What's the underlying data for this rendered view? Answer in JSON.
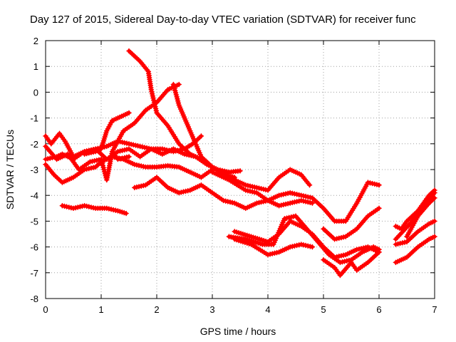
{
  "chart_data": {
    "type": "line",
    "title": "Day 127 of 2015, Sidereal Day-to-day VTEC variation (SDTVAR) for receiver func",
    "xlabel": "GPS time / hours",
    "ylabel": "SDTVAR / TECUs",
    "xlim": [
      0,
      7
    ],
    "ylim": [
      -8,
      2
    ],
    "x_ticks": [
      0,
      1,
      2,
      3,
      4,
      5,
      6,
      7
    ],
    "y_ticks": [
      -8,
      -7,
      -6,
      -5,
      -4,
      -3,
      -2,
      -1,
      0,
      1,
      2
    ],
    "grid": true,
    "color": "#ff0000",
    "series": [
      {
        "name": "s1",
        "x": [
          0.0,
          0.2,
          0.3,
          0.5,
          0.7,
          0.9,
          1.1,
          1.3,
          1.5,
          1.7,
          1.9,
          2.1,
          2.3,
          2.5,
          2.7,
          2.9,
          3.1,
          3.3,
          3.5
        ],
        "values": [
          -2.6,
          -2.5,
          -2.4,
          -2.6,
          -2.3,
          -2.2,
          -2.6,
          -2.3,
          -2.2,
          -2.5,
          -2.2,
          -2.4,
          -2.2,
          -2.4,
          -2.5,
          -2.8,
          -3.0,
          -3.1,
          -3.05
        ]
      },
      {
        "name": "s2",
        "x": [
          0.0,
          0.1,
          0.25,
          0.35,
          0.5,
          0.7,
          0.9,
          1.1,
          1.3,
          1.5,
          1.7,
          1.9,
          2.1,
          2.3,
          2.5,
          2.65,
          2.8
        ],
        "values": [
          -1.7,
          -2.0,
          -1.6,
          -1.9,
          -2.5,
          -2.3,
          -2.2,
          -2.1,
          -1.9,
          -2.0,
          -2.1,
          -2.2,
          -2.2,
          -2.3,
          -2.2,
          -2.0,
          -1.7
        ]
      },
      {
        "name": "s3",
        "x": [
          0.0,
          0.15,
          0.3,
          0.5,
          0.7,
          0.9,
          1.0,
          1.2,
          1.4,
          1.6,
          1.8,
          2.0,
          2.2,
          2.4,
          2.6,
          2.8,
          3.0
        ],
        "values": [
          -2.8,
          -3.2,
          -3.5,
          -3.3,
          -3.0,
          -2.9,
          -2.7,
          -2.5,
          -2.6,
          -2.8,
          -2.9,
          -2.9,
          -2.85,
          -2.9,
          -3.1,
          -3.3,
          -3.0
        ]
      },
      {
        "name": "s4",
        "x": [
          0.0,
          0.2,
          0.4,
          0.6,
          0.8,
          1.0,
          1.1,
          1.2,
          1.3,
          1.5
        ],
        "values": [
          -2.1,
          -2.6,
          -2.4,
          -3.0,
          -2.7,
          -2.6,
          -3.4,
          -2.3,
          -2.6,
          -2.5
        ]
      },
      {
        "name": "s5",
        "x": [
          0.3,
          0.5,
          0.7,
          0.9,
          1.1,
          1.3,
          1.45
        ],
        "values": [
          -4.4,
          -4.5,
          -4.4,
          -4.5,
          -4.5,
          -4.6,
          -4.7
        ]
      },
      {
        "name": "s6",
        "x": [
          0.7,
          0.9,
          1.0,
          1.1,
          1.2,
          1.3,
          1.5
        ],
        "values": [
          -2.4,
          -2.3,
          -2.2,
          -1.5,
          -1.1,
          -1.0,
          -0.8
        ]
      },
      {
        "name": "s7",
        "x": [
          1.2,
          1.4,
          1.6,
          1.8,
          2.0,
          2.2,
          2.4
        ],
        "values": [
          -2.3,
          -1.5,
          -1.2,
          -0.7,
          -0.4,
          0.1,
          0.3
        ]
      },
      {
        "name": "s8",
        "x": [
          1.5,
          1.7,
          1.85,
          1.9,
          2.0,
          2.2,
          2.4,
          2.6,
          2.8,
          3.0,
          3.2,
          3.4
        ],
        "values": [
          1.6,
          1.2,
          0.8,
          0.1,
          -0.8,
          -1.3,
          -2.0,
          -2.4,
          -2.6,
          -2.9,
          -3.2,
          -3.3
        ]
      },
      {
        "name": "s9",
        "x": [
          2.3,
          2.4,
          2.6,
          2.8,
          3.0,
          3.3,
          3.6,
          3.8,
          4.0,
          4.2,
          4.4,
          4.6,
          4.75
        ],
        "values": [
          0.3,
          -0.5,
          -1.5,
          -2.5,
          -2.9,
          -3.3,
          -3.6,
          -3.7,
          -3.8,
          -3.3,
          -3.0,
          -3.2,
          -3.6
        ]
      },
      {
        "name": "s10",
        "x": [
          1.6,
          1.8,
          2.0,
          2.2,
          2.4,
          2.6,
          2.8,
          3.0,
          3.2,
          3.4,
          3.6,
          3.8,
          4.0,
          4.2,
          4.4,
          4.6,
          4.8,
          5.0,
          5.2,
          5.4,
          5.6,
          5.8,
          6.0
        ],
        "values": [
          -3.7,
          -3.6,
          -3.3,
          -3.7,
          -3.9,
          -3.8,
          -3.6,
          -3.9,
          -4.2,
          -4.3,
          -4.5,
          -4.3,
          -4.2,
          -4.0,
          -3.9,
          -4.0,
          -4.1,
          -4.5,
          -5.0,
          -5.0,
          -4.3,
          -3.5,
          -3.6
        ]
      },
      {
        "name": "s11",
        "x": [
          3.0,
          3.3,
          3.6,
          3.8,
          4.0,
          4.2,
          4.4,
          4.6,
          4.8
        ],
        "values": [
          -3.1,
          -3.4,
          -3.8,
          -3.9,
          -4.2,
          -4.4,
          -4.3,
          -4.2,
          -4.3
        ]
      },
      {
        "name": "s12",
        "x": [
          3.3,
          3.6,
          3.9,
          4.1,
          4.3,
          4.5,
          4.7,
          4.9,
          5.1,
          5.3,
          5.5,
          5.7,
          5.9,
          6.0
        ],
        "values": [
          -5.6,
          -5.7,
          -5.9,
          -5.9,
          -4.9,
          -4.8,
          -5.3,
          -5.8,
          -6.3,
          -6.6,
          -6.5,
          -6.2,
          -6.0,
          -6.1
        ]
      },
      {
        "name": "s13",
        "x": [
          3.4,
          3.7,
          4.0,
          4.2,
          4.4,
          4.6,
          4.8,
          5.0,
          5.2,
          5.4,
          5.6,
          5.8,
          6.0
        ],
        "values": [
          -5.4,
          -5.6,
          -5.8,
          -5.5,
          -5.0,
          -5.2,
          -5.5,
          -6.0,
          -6.4,
          -6.3,
          -6.1,
          -6.0,
          -6.2
        ]
      },
      {
        "name": "s14",
        "x": [
          3.4,
          3.7,
          4.0,
          4.2,
          4.4,
          4.6,
          4.8
        ],
        "values": [
          -5.7,
          -5.9,
          -6.3,
          -6.2,
          -6.0,
          -5.9,
          -6.0
        ]
      },
      {
        "name": "s15",
        "x": [
          5.0,
          5.2,
          5.4,
          5.6,
          5.8,
          6.0
        ],
        "values": [
          -5.3,
          -5.7,
          -5.6,
          -5.3,
          -4.8,
          -4.5
        ]
      },
      {
        "name": "s16",
        "x": [
          5.0,
          5.2,
          5.3,
          5.5,
          5.6,
          5.8,
          6.0
        ],
        "values": [
          -6.5,
          -6.8,
          -7.1,
          -6.6,
          -6.9,
          -6.6,
          -6.2
        ]
      },
      {
        "name": "s17",
        "x": [
          6.3,
          6.4,
          6.5,
          6.7,
          6.9,
          7.0
        ],
        "values": [
          -5.2,
          -5.3,
          -5.0,
          -4.6,
          -4.0,
          -3.8
        ]
      },
      {
        "name": "s18",
        "x": [
          6.3,
          6.5,
          6.7,
          6.9,
          7.0
        ],
        "values": [
          -6.6,
          -6.4,
          -6.0,
          -5.7,
          -5.6
        ]
      },
      {
        "name": "s19",
        "x": [
          6.3,
          6.5,
          6.7,
          6.9,
          7.0
        ],
        "values": [
          -5.9,
          -5.8,
          -5.4,
          -5.1,
          -5.0
        ]
      },
      {
        "name": "s20",
        "x": [
          6.5,
          6.7,
          6.9,
          7.0
        ],
        "values": [
          -5.6,
          -4.8,
          -4.3,
          -4.1
        ]
      },
      {
        "name": "s21",
        "x": [
          6.3,
          6.6,
          6.8,
          7.0
        ],
        "values": [
          -5.7,
          -5.0,
          -4.4,
          -3.9
        ]
      }
    ]
  }
}
